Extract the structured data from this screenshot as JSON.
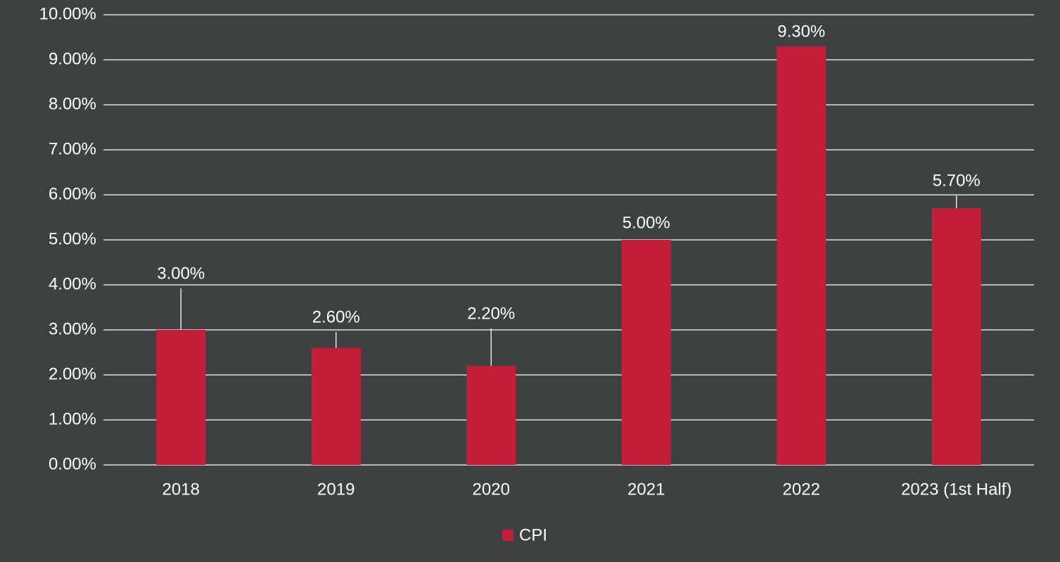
{
  "chart_data": {
    "type": "bar",
    "categories": [
      "2018",
      "2019",
      "2020",
      "2021",
      "2022",
      "2023 (1st Half)"
    ],
    "series": [
      {
        "name": "CPI",
        "color": "#c41e3a",
        "values": [
          3.0,
          2.6,
          2.2,
          5.0,
          9.3,
          5.7
        ],
        "value_labels": [
          "3.00%",
          "2.60%",
          "2.20%",
          "5.00%",
          "9.30%",
          "5.70%"
        ]
      }
    ],
    "ylim": [
      0,
      10
    ],
    "yticks": [
      {
        "value": 0,
        "label": "0.00%"
      },
      {
        "value": 1,
        "label": "1.00%"
      },
      {
        "value": 2,
        "label": "2.00%"
      },
      {
        "value": 3,
        "label": "3.00%"
      },
      {
        "value": 4,
        "label": "4.00%"
      },
      {
        "value": 5,
        "label": "5.00%"
      },
      {
        "value": 6,
        "label": "6.00%"
      },
      {
        "value": 7,
        "label": "7.00%"
      },
      {
        "value": 8,
        "label": "8.00%"
      },
      {
        "value": 9,
        "label": "9.00%"
      },
      {
        "value": 10,
        "label": "10.00%"
      }
    ],
    "grid": true,
    "legend": "bottom"
  }
}
